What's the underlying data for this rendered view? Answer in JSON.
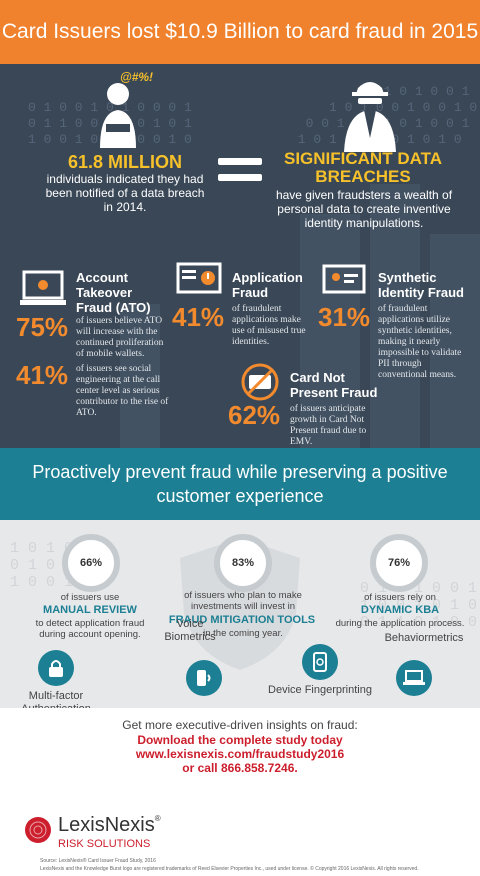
{
  "header": {
    "title": "Card Issuers lost $10.9 Billion to card fraud in 2015"
  },
  "breach": {
    "stat": "61.8 MILLION",
    "stat_desc": "individuals indicated they had been notified of a data breach in 2014.",
    "title": "SIGNIFICANT DATA BREACHES",
    "desc": "have given fraudsters a wealth of personal data to create inventive identity manipulations.",
    "bubble": "@#%!"
  },
  "fraud": {
    "ato": {
      "title": "Account Takeover Fraud (ATO)",
      "pct1": "75%",
      "desc1": "of issuers believe ATO will increase with the continued proliferation of mobile wallets.",
      "pct2": "41%",
      "desc2": "of issuers see social engineering at the call center level as serious contributor to the rise of ATO."
    },
    "application": {
      "title": "Application Fraud",
      "pct": "41%",
      "desc": "of fraudulent applications make use of misused true identities."
    },
    "synthetic": {
      "title": "Synthetic Identity Fraud",
      "pct": "31%",
      "desc": "of fraudulent applications utilize synthetic identities, making it nearly impossible to validate PII through conventional means."
    },
    "cnp": {
      "title": "Card Not Present Fraud",
      "pct": "62%",
      "desc": "of issuers anticipate growth in Card Not Present fraud due to EMV."
    }
  },
  "banner": {
    "text": "Proactively prevent fraud while preserving a positive customer experience"
  },
  "solutions": {
    "manual": {
      "pct": "66%",
      "pre": "of issuers use",
      "key": "MANUAL REVIEW",
      "post": "to detect application fraud during account opening."
    },
    "tools": {
      "pct": "83%",
      "pre": "of issuers who plan to make investments will invest in",
      "key": "FRAUD MITIGATION TOOLS",
      "post": "in the coming year."
    },
    "kba": {
      "pct": "76%",
      "pre": "of issuers rely on",
      "key": "DYNAMIC KBA",
      "post": "during the application process."
    }
  },
  "biometrics": [
    {
      "label": "Multi-factor Authentication",
      "icon": "lock-person-icon"
    },
    {
      "label": "Voice Biometrics",
      "icon": "voice-phone-icon"
    },
    {
      "label": "Device Fingerprinting",
      "icon": "fingerprint-phone-icon"
    },
    {
      "label": "Behaviormetrics",
      "icon": "laptop-touch-icon"
    }
  ],
  "footer": {
    "cta_line1": "Get more executive-driven insights on fraud:",
    "cta_line2": "Download the complete study today",
    "cta_line3": "www.lexisnexis.com/fraudstudy2016",
    "cta_line4": "or call 866.858.7246.",
    "brand": "LexisNexis",
    "brand_mark": "®",
    "sub": "RISK SOLUTIONS",
    "source": "Source: LexisNexis® Card Issuer Fraud Study, 2016",
    "legal": "LexisNexis and the Knowledge Burst logo are registered trademarks of Reed Elsevier Properties Inc., used under license. © Copyright 2016 LexisNexis. All rights reserved."
  },
  "colors": {
    "orange": "#f0812d",
    "navy": "#3a4756",
    "teal": "#1c7f93",
    "gold": "#f6c12a",
    "red": "#cc1e2c"
  }
}
